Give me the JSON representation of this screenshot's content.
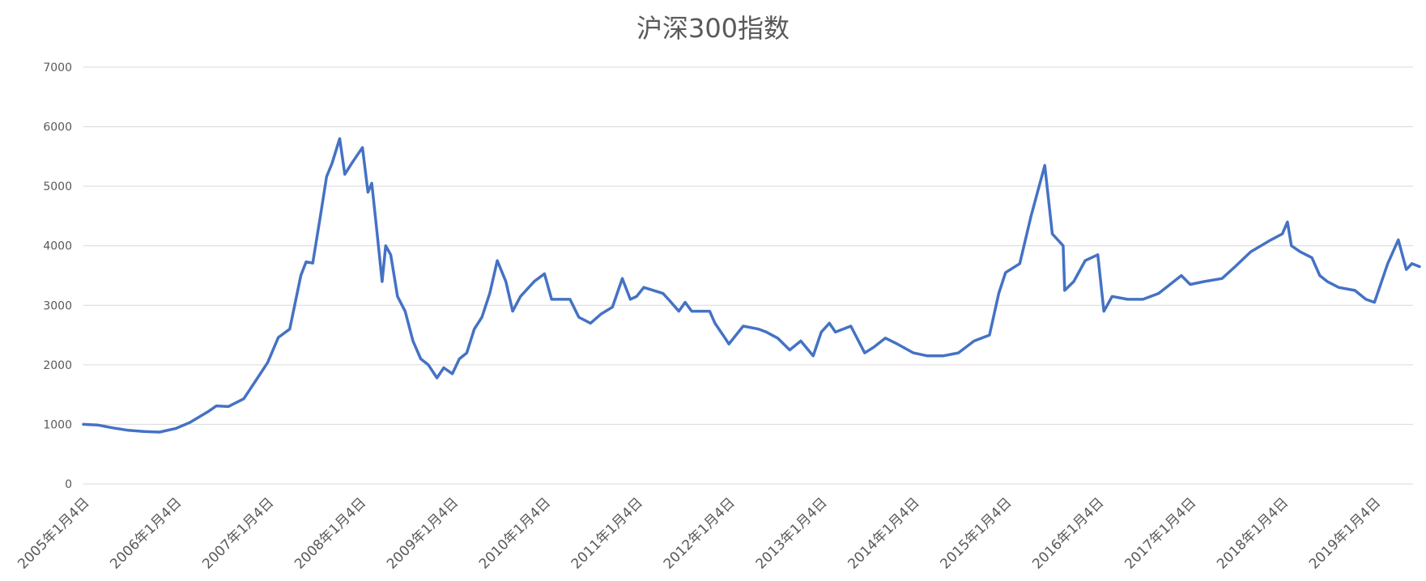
{
  "chart_data": {
    "type": "line",
    "title": "沪深300指数",
    "xlabel": "",
    "ylabel": "",
    "ylim": [
      0,
      7000
    ],
    "yticks": [
      0,
      1000,
      2000,
      3000,
      4000,
      5000,
      6000,
      7000
    ],
    "grid": true,
    "legend": "none",
    "line_color": "#4472C4",
    "x_tick_labels": [
      "2005年1月4日",
      "2006年1月4日",
      "2007年1月4日",
      "2008年1月4日",
      "2009年1月4日",
      "2010年1月4日",
      "2011年1月4日",
      "2012年1月4日",
      "2013年1月4日",
      "2014年1月4日",
      "2015年1月4日",
      "2016年1月4日",
      "2017年1月4日",
      "2018年1月4日",
      "2019年1月4日"
    ],
    "x": [
      "2005-01-04",
      "2005-03-01",
      "2005-05-01",
      "2005-07-01",
      "2005-09-01",
      "2005-11-01",
      "2006-01-04",
      "2006-03-01",
      "2006-05-15",
      "2006-06-15",
      "2006-08-01",
      "2006-10-01",
      "2006-12-01",
      "2007-01-04",
      "2007-02-15",
      "2007-04-01",
      "2007-05-15",
      "2007-06-05",
      "2007-07-01",
      "2007-08-01",
      "2007-08-25",
      "2007-09-15",
      "2007-10-16",
      "2007-11-05",
      "2007-12-05",
      "2008-01-14",
      "2008-02-05",
      "2008-02-20",
      "2008-03-10",
      "2008-04-01",
      "2008-04-15",
      "2008-05-05",
      "2008-06-01",
      "2008-07-01",
      "2008-08-01",
      "2008-09-01",
      "2008-10-01",
      "2008-11-04",
      "2008-12-01",
      "2009-01-04",
      "2009-02-01",
      "2009-03-02",
      "2009-04-01",
      "2009-05-01",
      "2009-06-01",
      "2009-07-01",
      "2009-08-04",
      "2009-08-31",
      "2009-10-01",
      "2009-11-24",
      "2010-01-04",
      "2010-02-01",
      "2010-04-15",
      "2010-05-20",
      "2010-07-05",
      "2010-08-15",
      "2010-09-30",
      "2010-11-08",
      "2010-12-10",
      "2011-01-04",
      "2011-02-01",
      "2011-04-18",
      "2011-05-10",
      "2011-06-20",
      "2011-07-15",
      "2011-08-10",
      "2011-10-20",
      "2011-11-10",
      "2011-12-20",
      "2012-01-04",
      "2012-03-01",
      "2012-05-01",
      "2012-06-01",
      "2012-07-15",
      "2012-09-01",
      "2012-10-15",
      "2012-12-03",
      "2013-01-04",
      "2013-02-05",
      "2013-03-01",
      "2013-05-01",
      "2013-06-25",
      "2013-08-01",
      "2013-09-15",
      "2013-11-01",
      "2014-01-04",
      "2014-03-01",
      "2014-05-01",
      "2014-07-01",
      "2014-09-01",
      "2014-11-01",
      "2014-12-08",
      "2015-01-04",
      "2015-03-01",
      "2015-04-15",
      "2015-06-08",
      "2015-07-08",
      "2015-08-20",
      "2015-08-26",
      "2015-10-01",
      "2015-11-15",
      "2016-01-04",
      "2016-01-28",
      "2016-03-01",
      "2016-05-01",
      "2016-07-01",
      "2016-09-01",
      "2016-11-30",
      "2017-01-04",
      "2017-03-01",
      "2017-05-10",
      "2017-07-01",
      "2017-09-01",
      "2017-11-20",
      "2018-01-04",
      "2018-01-24",
      "2018-02-09",
      "2018-03-15",
      "2018-05-01",
      "2018-06-01",
      "2018-07-01",
      "2018-08-15",
      "2018-10-18",
      "2018-12-01",
      "2019-01-04",
      "2019-02-25",
      "2019-04-08",
      "2019-05-10",
      "2019-06-01",
      "2019-07-01"
    ],
    "series": [
      {
        "values": [
          1000,
          990,
          940,
          900,
          880,
          870,
          930,
          1030,
          1220,
          1310,
          1300,
          1430,
          1820,
          2040,
          2460,
          2600,
          3500,
          3730,
          3710,
          4510,
          5160,
          5380,
          5800,
          5200,
          5400,
          5650,
          4900,
          5050,
          4300,
          3400,
          4000,
          3850,
          3150,
          2900,
          2400,
          2100,
          2000,
          1780,
          1950,
          1850,
          2100,
          2200,
          2600,
          2800,
          3200,
          3750,
          3400,
          2900,
          3150,
          3400,
          3530,
          3100,
          3100,
          2800,
          2700,
          2850,
          2970,
          3450,
          3100,
          3150,
          3300,
          3200,
          3100,
          2900,
          3050,
          2900,
          2900,
          2700,
          2450,
          2350,
          2650,
          2600,
          2550,
          2450,
          2250,
          2400,
          2150,
          2550,
          2700,
          2550,
          2650,
          2200,
          2300,
          2450,
          2350,
          2200,
          2150,
          2150,
          2200,
          2400,
          2500,
          3200,
          3550,
          3700,
          4500,
          5350,
          4200,
          4000,
          3250,
          3400,
          3750,
          3850,
          2900,
          3150,
          3100,
          3100,
          3200,
          3500,
          3350,
          3400,
          3450,
          3650,
          3900,
          4100,
          4200,
          4400,
          4000,
          3900,
          3800,
          3500,
          3400,
          3300,
          3250,
          3100,
          3050,
          3700,
          4100,
          3600,
          3700,
          3650
        ]
      }
    ]
  }
}
